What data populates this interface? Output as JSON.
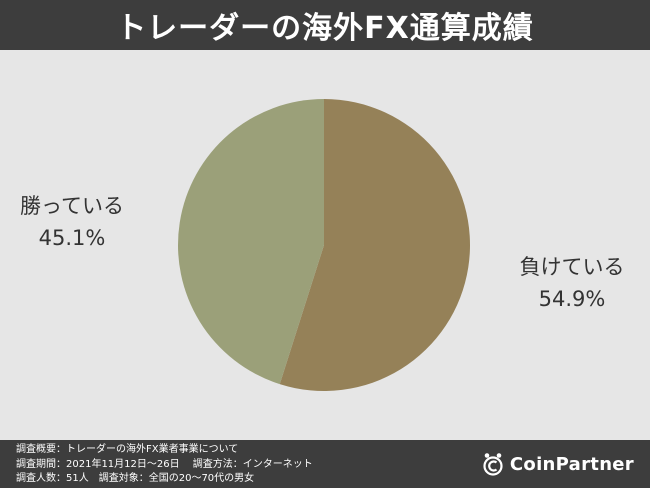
{
  "title": "トレーダーの海外FX通算成績",
  "chart_data": {
    "type": "pie",
    "slices": [
      {
        "label": "負けている",
        "value": 54.9,
        "display": "54.9%",
        "color": "#958158"
      },
      {
        "label": "勝っている",
        "value": 45.1,
        "display": "45.1%",
        "color": "#9ba079"
      }
    ],
    "start": "12 o'clock",
    "direction": "clockwise"
  },
  "footer": {
    "notes": [
      "調査概要：トレーダーの海外FX業者事業について",
      "調査期間：2021年11月12日〜26日　 調査方法：インターネット",
      "調査人数：51人　調査対象：全国の20〜70代の男女"
    ],
    "logo_text": "CoinPartner"
  }
}
